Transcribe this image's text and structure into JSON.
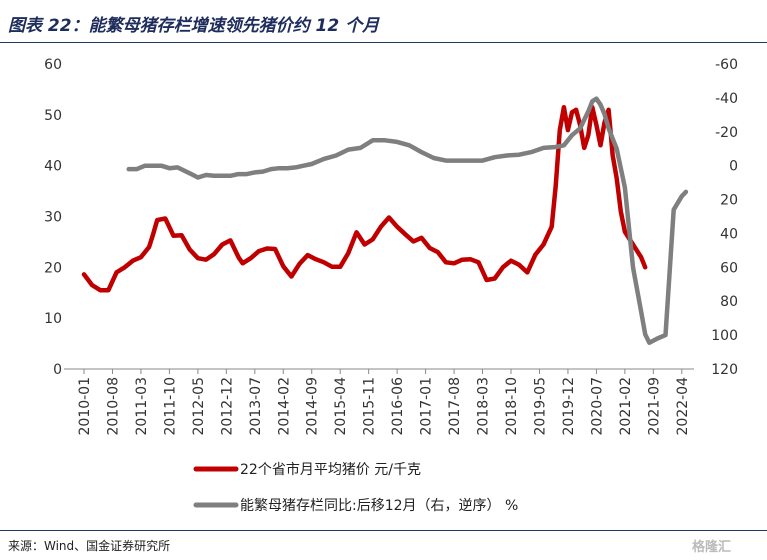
{
  "chart_data": {
    "type": "line",
    "title": "图表 22：能繁母猪存栏增速领先猪价约 12 个月",
    "x_tick_labels": [
      "2010-01",
      "2010-08",
      "2011-03",
      "2011-10",
      "2012-05",
      "2012-12",
      "2013-07",
      "2014-02",
      "2014-09",
      "2015-04",
      "2015-11",
      "2016-06",
      "2017-01",
      "2017-08",
      "2018-03",
      "2018-10",
      "2019-05",
      "2019-12",
      "2020-07",
      "2021-02",
      "2021-09",
      "2022-04"
    ],
    "left_axis": {
      "min": 0,
      "max": 60,
      "ticks": [
        0,
        10,
        20,
        30,
        40,
        50,
        60
      ]
    },
    "right_axis": {
      "min": -60,
      "max": 120,
      "reversed": true,
      "tick_labels": [
        "-60",
        "-40",
        "-20",
        "0",
        "20",
        "40",
        "60",
        "80",
        "100",
        "120"
      ]
    },
    "grid": false,
    "legend_position": "bottom",
    "series": [
      {
        "name": "22个省市月平均猪价 元/千克",
        "axis": "left",
        "color": "#c00000",
        "points": [
          [
            "2010-01",
            18.6
          ],
          [
            "2010-03",
            16.5
          ],
          [
            "2010-05",
            15.5
          ],
          [
            "2010-07",
            15.5
          ],
          [
            "2010-09",
            19.0
          ],
          [
            "2010-11",
            20.0
          ],
          [
            "2011-01",
            21.3
          ],
          [
            "2011-03",
            22.0
          ],
          [
            "2011-05",
            24.0
          ],
          [
            "2011-06",
            26.5
          ],
          [
            "2011-07",
            29.3
          ],
          [
            "2011-09",
            29.6
          ],
          [
            "2011-11",
            26.2
          ],
          [
            "2012-01",
            26.3
          ],
          [
            "2012-03",
            23.5
          ],
          [
            "2012-05",
            21.8
          ],
          [
            "2012-07",
            21.5
          ],
          [
            "2012-09",
            22.6
          ],
          [
            "2012-11",
            24.5
          ],
          [
            "2013-01",
            25.3
          ],
          [
            "2013-03",
            22.0
          ],
          [
            "2013-04",
            20.8
          ],
          [
            "2013-06",
            21.8
          ],
          [
            "2013-08",
            23.2
          ],
          [
            "2013-10",
            23.7
          ],
          [
            "2013-12",
            23.6
          ],
          [
            "2014-02",
            20.2
          ],
          [
            "2014-04",
            18.2
          ],
          [
            "2014-06",
            20.7
          ],
          [
            "2014-08",
            22.4
          ],
          [
            "2014-10",
            21.6
          ],
          [
            "2014-12",
            21.0
          ],
          [
            "2015-02",
            20.1
          ],
          [
            "2015-04",
            20.1
          ],
          [
            "2015-06",
            22.8
          ],
          [
            "2015-08",
            26.9
          ],
          [
            "2015-10",
            24.5
          ],
          [
            "2015-12",
            25.5
          ],
          [
            "2016-02",
            28.0
          ],
          [
            "2016-04",
            29.8
          ],
          [
            "2016-06",
            28.0
          ],
          [
            "2016-08",
            26.5
          ],
          [
            "2016-10",
            25.1
          ],
          [
            "2016-12",
            25.8
          ],
          [
            "2017-02",
            23.8
          ],
          [
            "2017-04",
            23.0
          ],
          [
            "2017-06",
            21.0
          ],
          [
            "2017-08",
            20.8
          ],
          [
            "2017-10",
            21.5
          ],
          [
            "2017-12",
            21.6
          ],
          [
            "2018-02",
            21.0
          ],
          [
            "2018-04",
            17.5
          ],
          [
            "2018-06",
            17.8
          ],
          [
            "2018-08",
            20.0
          ],
          [
            "2018-10",
            21.3
          ],
          [
            "2018-12",
            20.5
          ],
          [
            "2019-02",
            19.0
          ],
          [
            "2019-04",
            22.5
          ],
          [
            "2019-06",
            24.5
          ],
          [
            "2019-08",
            28.0
          ],
          [
            "2019-09",
            36.0
          ],
          [
            "2019-10",
            47.0
          ],
          [
            "2019-11",
            51.5
          ],
          [
            "2019-12",
            47.0
          ],
          [
            "2020-01",
            50.5
          ],
          [
            "2020-02",
            51.0
          ],
          [
            "2020-03",
            48.0
          ],
          [
            "2020-04",
            43.5
          ],
          [
            "2020-05",
            46.0
          ],
          [
            "2020-06",
            51.5
          ],
          [
            "2020-07",
            48.0
          ],
          [
            "2020-08",
            44.0
          ],
          [
            "2020-09",
            48.5
          ],
          [
            "2020-10",
            51.0
          ],
          [
            "2020-11",
            42.0
          ],
          [
            "2020-12",
            37.5
          ],
          [
            "2021-01",
            31.0
          ],
          [
            "2021-02",
            27.0
          ],
          [
            "2021-04",
            24.5
          ],
          [
            "2021-06",
            22.0
          ],
          [
            "2021-07",
            20.0
          ]
        ]
      },
      {
        "name": "能繁母猪存栏同比:后移12月（右，逆序） %",
        "axis": "right",
        "color": "#7f7f7f",
        "points": [
          [
            "2010-12",
            2.0
          ],
          [
            "2011-02",
            2.0
          ],
          [
            "2011-04",
            0.0
          ],
          [
            "2011-06",
            0.0
          ],
          [
            "2011-08",
            0.0
          ],
          [
            "2011-10",
            1.5
          ],
          [
            "2011-12",
            1.0
          ],
          [
            "2012-03",
            4.5
          ],
          [
            "2012-05",
            7.0
          ],
          [
            "2012-07",
            5.5
          ],
          [
            "2012-09",
            6.0
          ],
          [
            "2012-11",
            6.0
          ],
          [
            "2013-01",
            6.0
          ],
          [
            "2013-03",
            5.0
          ],
          [
            "2013-05",
            5.0
          ],
          [
            "2013-07",
            4.0
          ],
          [
            "2013-09",
            3.5
          ],
          [
            "2013-11",
            2.0
          ],
          [
            "2014-01",
            1.5
          ],
          [
            "2014-03",
            1.5
          ],
          [
            "2014-05",
            1.0
          ],
          [
            "2014-07",
            0.0
          ],
          [
            "2014-09",
            -1.0
          ],
          [
            "2014-12",
            -4.0
          ],
          [
            "2015-03",
            -6.0
          ],
          [
            "2015-06",
            -9.5
          ],
          [
            "2015-09",
            -10.5
          ],
          [
            "2015-12",
            -15.0
          ],
          [
            "2016-03",
            -15.0
          ],
          [
            "2016-06",
            -14.0
          ],
          [
            "2016-09",
            -12.0
          ],
          [
            "2016-12",
            -8.0
          ],
          [
            "2017-03",
            -4.5
          ],
          [
            "2017-06",
            -3.0
          ],
          [
            "2017-09",
            -3.0
          ],
          [
            "2017-12",
            -3.0
          ],
          [
            "2018-03",
            -3.0
          ],
          [
            "2018-06",
            -5.0
          ],
          [
            "2018-09",
            -6.0
          ],
          [
            "2018-12",
            -6.5
          ],
          [
            "2019-03",
            -8.0
          ],
          [
            "2019-06",
            -10.5
          ],
          [
            "2019-09",
            -11.0
          ],
          [
            "2019-11",
            -12.0
          ],
          [
            "2020-01",
            -18.0
          ],
          [
            "2020-03",
            -22.0
          ],
          [
            "2020-05",
            -32.0
          ],
          [
            "2020-06",
            -38.0
          ],
          [
            "2020-07",
            -39.5
          ],
          [
            "2020-08",
            -36.0
          ],
          [
            "2020-09",
            -30.5
          ],
          [
            "2020-10",
            -22.0
          ],
          [
            "2020-12",
            -10.0
          ],
          [
            "2021-02",
            13.0
          ],
          [
            "2021-04",
            60.0
          ],
          [
            "2021-06",
            86.0
          ],
          [
            "2021-07",
            99.5
          ],
          [
            "2021-08",
            104.5
          ],
          [
            "2021-10",
            102.0
          ],
          [
            "2021-12",
            100.0
          ],
          [
            "2022-02",
            26.0
          ],
          [
            "2022-04",
            18.0
          ],
          [
            "2022-05",
            15.5
          ]
        ]
      }
    ]
  },
  "legend": [
    {
      "label": "22个省市月平均猪价 元/千克",
      "color": "#c00000"
    },
    {
      "label": "能繁母猪存栏同比:后移12月（右，逆序） %",
      "color": "#7f7f7f"
    }
  ],
  "source": "来源：Wind、国金证券研究所",
  "watermark": "格隆汇"
}
